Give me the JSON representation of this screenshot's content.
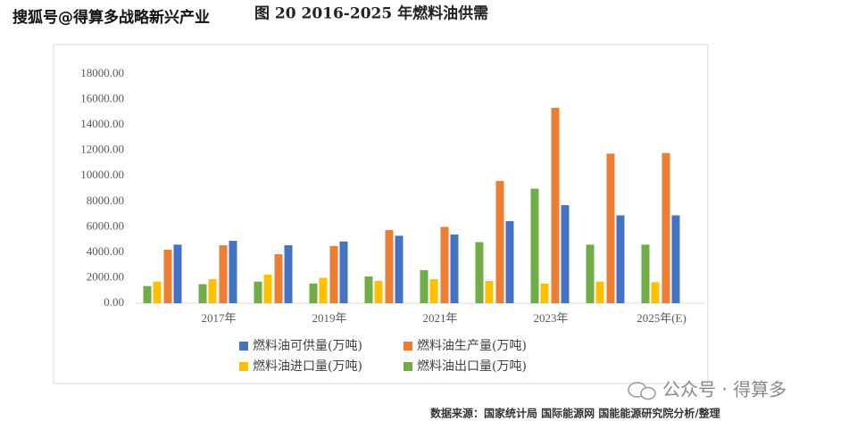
{
  "chart_data": {
    "type": "bar",
    "title": "图 20 2016-2025 年燃料油供需",
    "watermark": "搜狐号@得算多战略新兴产业",
    "source": "数据来源：国家统计局 国际能源网 国能能源研究院分析/整理",
    "account": "公众号 · 得算多",
    "categories": [
      null,
      "2017年",
      null,
      "2019年",
      null,
      "2021年",
      null,
      "2023年",
      null,
      "2025年(E)"
    ],
    "series": [
      {
        "name": "燃料油可供量(万吨)",
        "color": "#4472c4",
        "values": [
          4600,
          4900,
          4550,
          4850,
          5300,
          5400,
          6450,
          7700,
          6900,
          6900
        ]
      },
      {
        "name": "燃料油生产量(万吨)",
        "color": "#ed7d31",
        "values": [
          4200,
          4550,
          3850,
          4500,
          5750,
          6000,
          9600,
          15350,
          11750,
          11800
        ]
      },
      {
        "name": "燃料油进口量(万吨)",
        "color": "#ffc000",
        "values": [
          1700,
          1900,
          2250,
          2000,
          1750,
          1900,
          1750,
          1550,
          1700,
          1650
        ]
      },
      {
        "name": "燃料油出口量(万吨)",
        "color": "#70ad47",
        "values": [
          1350,
          1500,
          1700,
          1550,
          2100,
          2600,
          4800,
          9000,
          4600,
          4600
        ]
      }
    ],
    "ylim": [
      0,
      18000
    ],
    "yticks": [
      {
        "value": 0,
        "label": "0.00"
      },
      {
        "value": 2000,
        "label": "2000.00"
      },
      {
        "value": 4000,
        "label": "4000.00"
      },
      {
        "value": 6000,
        "label": "6000.00"
      },
      {
        "value": 8000,
        "label": "8000.00"
      },
      {
        "value": 10000,
        "label": "10000.00"
      },
      {
        "value": 12000,
        "label": "12000.00"
      },
      {
        "value": 14000,
        "label": "14000.00"
      },
      {
        "value": 16000,
        "label": "16000.00"
      },
      {
        "value": 18000,
        "label": "18000.00"
      }
    ],
    "grid": false
  }
}
